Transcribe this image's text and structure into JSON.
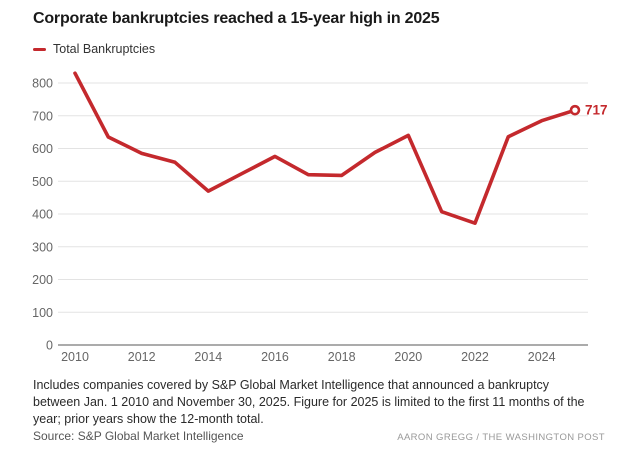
{
  "title": "Corporate bankruptcies reached a 15-year high in 2025",
  "legend": {
    "label": "Total Bankruptcies"
  },
  "colors": {
    "line": "#c4292d",
    "end_label": "#c4292d",
    "marker_fill": "#ffffff",
    "title_text": "#1a1a1a",
    "axis_text": "#666666",
    "gridline": "#e3e3e3",
    "baseline": "#ababab",
    "background": "#ffffff"
  },
  "chart_data": {
    "type": "line",
    "title": "Corporate bankruptcies reached a 15-year high in 2025",
    "xlabel": "",
    "ylabel": "",
    "x": [
      2010,
      2011,
      2012,
      2013,
      2014,
      2015,
      2016,
      2017,
      2018,
      2019,
      2020,
      2021,
      2022,
      2023,
      2024,
      2025
    ],
    "series": [
      {
        "name": "Total Bankruptcies",
        "values": [
          830,
          635,
          585,
          558,
          470,
          523,
          576,
          520,
          518,
          588,
          640,
          407,
          372,
          636,
          685,
          717
        ]
      }
    ],
    "end_point_label": "717",
    "end_point_value": 717,
    "yticks": [
      0,
      100,
      200,
      300,
      400,
      500,
      600,
      700,
      800
    ],
    "ytick_labels": [
      "0",
      "100",
      "200",
      "300",
      "400",
      "500",
      "600",
      "700",
      "800"
    ],
    "xticks": [
      2010,
      2012,
      2014,
      2016,
      2018,
      2020,
      2022,
      2024
    ],
    "xtick_labels": [
      "2010",
      "2012",
      "2014",
      "2016",
      "2018",
      "2020",
      "2022",
      "2024"
    ],
    "ylim": [
      0,
      850
    ],
    "grid": true,
    "legend_position": "top-left",
    "marker_style": "open-circle-on-last-point"
  },
  "footnote": "Includes companies covered by S&P Global Market Intelligence that announced a bankruptcy between Jan. 1 2010 and November 30, 2025. Figure for 2025 is limited to the first 11 months of the year; prior years show the 12-month total.",
  "source": "Source: S&P Global Market Intelligence",
  "credit": "AARON GREGG / THE WASHINGTON POST"
}
